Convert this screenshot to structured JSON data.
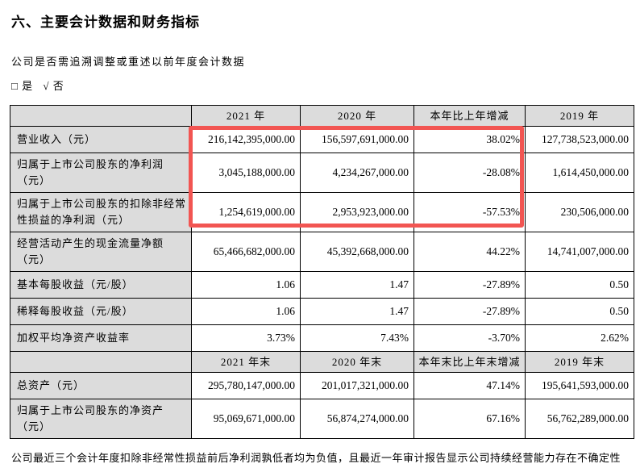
{
  "page": {
    "title": "六、主要会计数据和财务指标",
    "question": "公司是否需追溯调整或重述以前年度会计数据",
    "option_yes": "□ 是",
    "option_no": "√ 否",
    "footnote": "公司最近三个会计年度扣除非经常性损益前后净利润孰低者均为负值，且最近一年审计报告显示公司持续经营能力存在不确定性"
  },
  "colors": {
    "highlight_red": "#f25552",
    "header_gray": "#dcdcdc",
    "border_black": "#000000"
  },
  "table": {
    "sections": [
      {
        "headers": [
          "",
          "2021 年",
          "2020 年",
          "本年比上年增减",
          "2019 年"
        ],
        "rows": [
          [
            "营业收入（元）",
            "216,142,395,000.00",
            "156,597,691,000.00",
            "38.02%",
            "127,738,523,000.00"
          ],
          [
            "归属于上市公司股东的净利润（元）",
            "3,045,188,000.00",
            "4,234,267,000.00",
            "-28.08%",
            "1,614,450,000.00"
          ],
          [
            "归属于上市公司股东的扣除非经常性损益的净利润（元）",
            "1,254,619,000.00",
            "2,953,923,000.00",
            "-57.53%",
            "230,506,000.00"
          ],
          [
            "经营活动产生的现金流量净额（元）",
            "65,466,682,000.00",
            "45,392,668,000.00",
            "44.22%",
            "14,741,007,000.00"
          ],
          [
            "基本每股收益（元/股）",
            "1.06",
            "1.47",
            "-27.89%",
            "0.50"
          ],
          [
            "稀释每股收益（元/股）",
            "1.06",
            "1.47",
            "-27.89%",
            "0.50"
          ],
          [
            "加权平均净资产收益率",
            "3.73%",
            "7.43%",
            "-3.70%",
            "2.62%"
          ]
        ]
      },
      {
        "headers": [
          "",
          "2021 年末",
          "2020 年末",
          "本年末比上年末增减",
          "2019 年末"
        ],
        "rows": [
          [
            "总资产（元）",
            "295,780,147,000.00",
            "201,017,321,000.00",
            "47.14%",
            "195,641,593,000.00"
          ],
          [
            "归属于上市公司股东的净资产（元）",
            "95,069,671,000.00",
            "56,874,274,000.00",
            "67.16%",
            "56,762,289,000.00"
          ]
        ]
      }
    ]
  }
}
